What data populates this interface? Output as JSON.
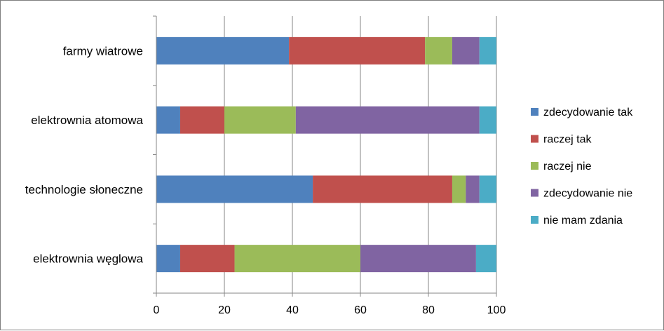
{
  "chart_data": {
    "type": "bar",
    "orientation": "horizontal",
    "stacked": true,
    "title": "",
    "xlabel": "",
    "ylabel": "",
    "xlim": [
      0,
      100
    ],
    "xticks": [
      0,
      20,
      40,
      60,
      80,
      100
    ],
    "grid": true,
    "legend_position": "right",
    "categories": [
      "farmy wiatrowe",
      "elektrownia atomowa",
      "technologie słoneczne",
      "elektrownia węglowa"
    ],
    "series": [
      {
        "name": "zdecydowanie tak",
        "color": "#4f81bd",
        "values": [
          39,
          7,
          46,
          7
        ]
      },
      {
        "name": "raczej tak",
        "color": "#c0504d",
        "values": [
          40,
          13,
          41,
          16
        ]
      },
      {
        "name": "raczej nie",
        "color": "#9bbb59",
        "values": [
          8,
          21,
          4,
          37
        ]
      },
      {
        "name": "zdecydowanie nie",
        "color": "#8064a2",
        "values": [
          8,
          54,
          4,
          34
        ]
      },
      {
        "name": "nie mam zdania",
        "color": "#4bacc6",
        "values": [
          5,
          5,
          5,
          6
        ]
      }
    ]
  }
}
